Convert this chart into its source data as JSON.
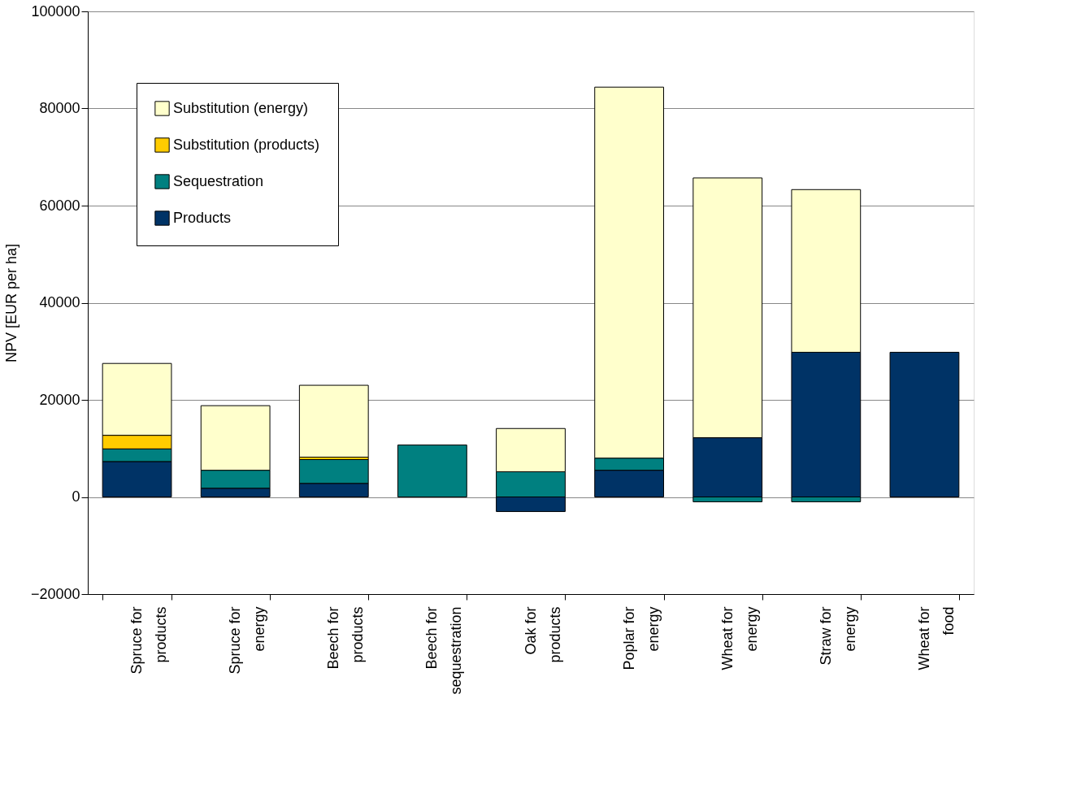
{
  "chart_data": {
    "type": "bar",
    "stacked": true,
    "ylabel": "NPV [EUR per ha]",
    "categories": [
      "Spruce for products",
      "Spruce for energy",
      "Beech for products",
      "Beech for sequestration",
      "Oak for products",
      "Poplar for energy",
      "Wheat for energy",
      "Straw for energy",
      "Wheat for food"
    ],
    "series": [
      {
        "name": "Products",
        "color": "#003366",
        "values": [
          7300,
          1800,
          2800,
          null,
          -3000,
          5500,
          12200,
          29800,
          29800
        ]
      },
      {
        "name": "Sequestration",
        "color": "#008080",
        "values": [
          2600,
          3700,
          4900,
          10700,
          5200,
          2500,
          -1000,
          -1000,
          null
        ]
      },
      {
        "name": "Substitution (products)",
        "color": "#ffcc00",
        "values": [
          2800,
          null,
          500,
          null,
          null,
          null,
          null,
          null,
          null
        ]
      },
      {
        "name": "Substitution (energy)",
        "color": "#ffffcc",
        "values": [
          14800,
          13300,
          14800,
          null,
          8900,
          76400,
          53500,
          33500,
          null
        ]
      }
    ],
    "ylim": [
      -20000,
      100000
    ],
    "yticks": [
      -20000,
      0,
      20000,
      40000,
      60000,
      80000,
      100000
    ],
    "grid": "y",
    "legend": "top left"
  }
}
